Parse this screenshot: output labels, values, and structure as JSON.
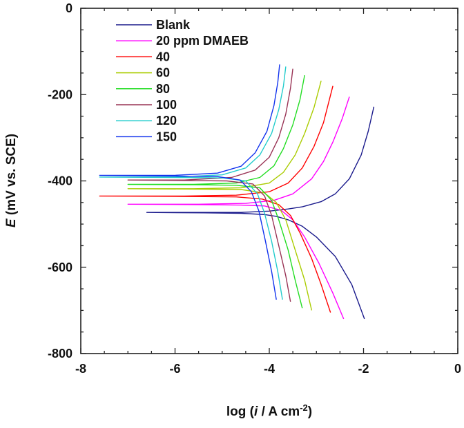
{
  "chart_data": {
    "type": "line",
    "xlabel_parts": [
      "log (",
      "i",
      " / A cm",
      "-2",
      ")"
    ],
    "ylabel_parts": [
      "E",
      " (mV vs. SCE)"
    ],
    "xlim": [
      -8,
      0
    ],
    "ylim": [
      -800,
      0
    ],
    "xticks": [
      -8,
      -6,
      -4,
      -2,
      0
    ],
    "yticks": [
      0,
      -200,
      -400,
      -600,
      -800
    ],
    "xtick_labels": [
      "-8",
      "-6",
      "-4",
      "-2",
      "0"
    ],
    "ytick_labels": [
      "0",
      "-200",
      "-400",
      "-600",
      "-800"
    ],
    "grid": false,
    "legend_position": "top-left",
    "series": [
      {
        "name": "Blank",
        "color": "#1a1a8c",
        "points": [
          [
            -1.98,
            -720
          ],
          [
            -2.25,
            -640
          ],
          [
            -2.6,
            -575
          ],
          [
            -3.0,
            -530
          ],
          [
            -3.3,
            -505
          ],
          [
            -3.6,
            -490
          ],
          [
            -3.85,
            -482
          ],
          [
            -4.1,
            -478
          ],
          [
            -4.6,
            -475
          ],
          [
            -5.4,
            -474
          ],
          [
            -6.6,
            -473
          ],
          [
            -4.6,
            -473
          ],
          [
            -4.0,
            -470
          ],
          [
            -3.6,
            -465
          ],
          [
            -3.3,
            -460
          ],
          [
            -2.9,
            -448
          ],
          [
            -2.6,
            -430
          ],
          [
            -2.3,
            -395
          ],
          [
            -2.05,
            -340
          ],
          [
            -1.9,
            -285
          ],
          [
            -1.78,
            -228
          ]
        ]
      },
      {
        "name": "20 ppm DMAEB",
        "color": "#ff00ff",
        "points": [
          [
            -2.42,
            -720
          ],
          [
            -2.65,
            -660
          ],
          [
            -2.95,
            -590
          ],
          [
            -3.25,
            -530
          ],
          [
            -3.5,
            -490
          ],
          [
            -3.75,
            -468
          ],
          [
            -4.1,
            -458
          ],
          [
            -4.6,
            -456
          ],
          [
            -5.5,
            -455
          ],
          [
            -7.0,
            -454
          ],
          [
            -5.5,
            -454
          ],
          [
            -4.5,
            -452
          ],
          [
            -3.9,
            -445
          ],
          [
            -3.5,
            -430
          ],
          [
            -3.1,
            -395
          ],
          [
            -2.85,
            -355
          ],
          [
            -2.65,
            -310
          ],
          [
            -2.45,
            -255
          ],
          [
            -2.3,
            -205
          ]
        ]
      },
      {
        "name": "40",
        "color": "#ff0000",
        "points": [
          [
            -2.7,
            -705
          ],
          [
            -2.9,
            -640
          ],
          [
            -3.1,
            -580
          ],
          [
            -3.35,
            -520
          ],
          [
            -3.55,
            -480
          ],
          [
            -3.8,
            -455
          ],
          [
            -4.15,
            -442
          ],
          [
            -4.7,
            -437
          ],
          [
            -5.8,
            -436
          ],
          [
            -7.6,
            -435
          ],
          [
            -5.8,
            -435
          ],
          [
            -4.7,
            -433
          ],
          [
            -4.0,
            -425
          ],
          [
            -3.6,
            -405
          ],
          [
            -3.3,
            -370
          ],
          [
            -3.05,
            -320
          ],
          [
            -2.85,
            -265
          ],
          [
            -2.65,
            -180
          ]
        ]
      },
      {
        "name": "60",
        "color": "#aacc00",
        "points": [
          [
            -3.1,
            -700
          ],
          [
            -3.25,
            -630
          ],
          [
            -3.45,
            -560
          ],
          [
            -3.65,
            -490
          ],
          [
            -3.85,
            -450
          ],
          [
            -4.1,
            -428
          ],
          [
            -4.6,
            -420
          ],
          [
            -5.6,
            -419
          ],
          [
            -7.0,
            -418
          ],
          [
            -5.6,
            -418
          ],
          [
            -4.6,
            -416
          ],
          [
            -4.0,
            -405
          ],
          [
            -3.7,
            -380
          ],
          [
            -3.45,
            -340
          ],
          [
            -3.25,
            -290
          ],
          [
            -3.05,
            -230
          ],
          [
            -2.9,
            -168
          ]
        ]
      },
      {
        "name": "80",
        "color": "#22dd22",
        "points": [
          [
            -3.3,
            -695
          ],
          [
            -3.45,
            -630
          ],
          [
            -3.6,
            -560
          ],
          [
            -3.8,
            -490
          ],
          [
            -3.95,
            -445
          ],
          [
            -4.2,
            -416
          ],
          [
            -4.7,
            -410
          ],
          [
            -5.6,
            -409
          ],
          [
            -7.0,
            -408
          ],
          [
            -5.6,
            -408
          ],
          [
            -4.7,
            -405
          ],
          [
            -4.2,
            -392
          ],
          [
            -3.9,
            -365
          ],
          [
            -3.7,
            -325
          ],
          [
            -3.5,
            -270
          ],
          [
            -3.35,
            -212
          ],
          [
            -3.25,
            -155
          ]
        ]
      },
      {
        "name": "100",
        "color": "#993355",
        "points": [
          [
            -3.55,
            -680
          ],
          [
            -3.65,
            -620
          ],
          [
            -3.8,
            -550
          ],
          [
            -3.95,
            -480
          ],
          [
            -4.1,
            -435
          ],
          [
            -4.35,
            -407
          ],
          [
            -4.9,
            -400
          ],
          [
            -5.8,
            -399
          ],
          [
            -7.0,
            -398
          ],
          [
            -5.8,
            -398
          ],
          [
            -4.8,
            -392
          ],
          [
            -4.3,
            -375
          ],
          [
            -4.0,
            -345
          ],
          [
            -3.8,
            -300
          ],
          [
            -3.65,
            -245
          ],
          [
            -3.55,
            -185
          ],
          [
            -3.5,
            -140
          ]
        ]
      },
      {
        "name": "120",
        "color": "#22cccc",
        "points": [
          [
            -3.72,
            -675
          ],
          [
            -3.82,
            -610
          ],
          [
            -3.95,
            -540
          ],
          [
            -4.1,
            -475
          ],
          [
            -4.25,
            -430
          ],
          [
            -4.5,
            -400
          ],
          [
            -5.0,
            -393
          ],
          [
            -6.0,
            -392
          ],
          [
            -7.6,
            -391
          ],
          [
            -6.0,
            -391
          ],
          [
            -5.0,
            -386
          ],
          [
            -4.5,
            -370
          ],
          [
            -4.2,
            -340
          ],
          [
            -3.95,
            -290
          ],
          [
            -3.8,
            -235
          ],
          [
            -3.7,
            -180
          ],
          [
            -3.65,
            -135
          ]
        ]
      },
      {
        "name": "150",
        "color": "#1133ee",
        "points": [
          [
            -3.85,
            -675
          ],
          [
            -3.95,
            -610
          ],
          [
            -4.08,
            -540
          ],
          [
            -4.22,
            -470
          ],
          [
            -4.38,
            -425
          ],
          [
            -4.62,
            -398
          ],
          [
            -5.1,
            -390
          ],
          [
            -6.0,
            -389
          ],
          [
            -7.6,
            -387
          ],
          [
            -6.0,
            -387
          ],
          [
            -5.1,
            -382
          ],
          [
            -4.6,
            -366
          ],
          [
            -4.3,
            -335
          ],
          [
            -4.05,
            -285
          ],
          [
            -3.9,
            -225
          ],
          [
            -3.82,
            -172
          ],
          [
            -3.78,
            -130
          ]
        ]
      }
    ]
  }
}
